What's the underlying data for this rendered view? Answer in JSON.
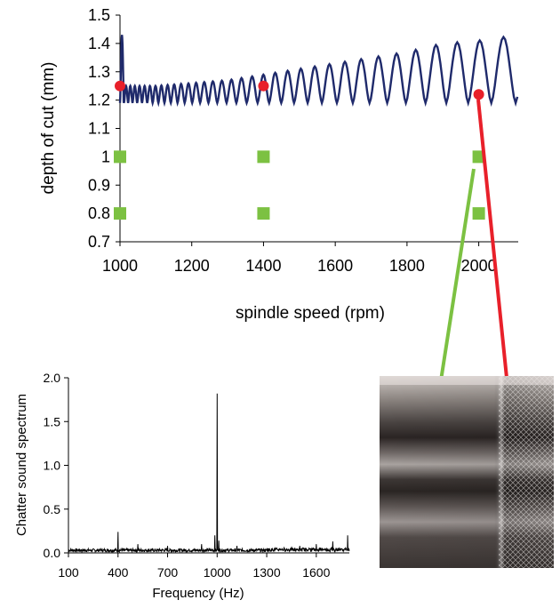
{
  "chart_data": [
    {
      "type": "line",
      "xlabel": "spindle speed (rpm)",
      "ylabel": "depth of cut (mm)",
      "xlim": [
        1000,
        2110
      ],
      "ylim": [
        0.7,
        1.5
      ],
      "x_ticks": [
        1000,
        1200,
        1400,
        1600,
        1800,
        2000
      ],
      "y_ticks": [
        0.7,
        0.8,
        0.9,
        1.0,
        1.1,
        1.2,
        1.3,
        1.4,
        1.5
      ],
      "x_tick_labels": [
        "1000",
        "1200",
        "1400",
        "1600",
        "1800",
        "2000"
      ],
      "y_tick_labels": [
        "0.7",
        "0.8",
        "0.9",
        "1",
        "1.1",
        "1.2",
        "1.3",
        "1.4",
        "1.5"
      ],
      "grid": false,
      "stability_lobes": {
        "color": "#1f2a6b",
        "min_depth": 1.19,
        "x_start": 1000,
        "x_end": 2110,
        "lobe_peaks": [
          [
            1010,
            1.25
          ],
          [
            1100,
            1.25
          ],
          [
            1200,
            1.26
          ],
          [
            1300,
            1.27
          ],
          [
            1400,
            1.29
          ],
          [
            1500,
            1.31
          ],
          [
            1600,
            1.33
          ],
          [
            1700,
            1.35
          ],
          [
            1800,
            1.37
          ],
          [
            1900,
            1.4
          ],
          [
            2000,
            1.41
          ],
          [
            2110,
            1.43
          ]
        ]
      },
      "points_red": {
        "color": "#e8202a",
        "x": [
          1000,
          1400,
          2000
        ],
        "y": [
          1.25,
          1.25,
          1.22
        ]
      },
      "points_green": {
        "color": "#7cc142",
        "x": [
          1000,
          1400,
          2000,
          1000,
          1400,
          2000
        ],
        "y": [
          1.0,
          1.0,
          1.0,
          0.8,
          0.8,
          0.8
        ]
      },
      "arrows": {
        "green": "#7cc142",
        "red": "#e8202a"
      }
    },
    {
      "type": "line",
      "xlabel": "Frequency (Hz)",
      "ylabel": "Chatter sound spectrum",
      "xlim": [
        100,
        1800
      ],
      "ylim": [
        0,
        2.0
      ],
      "x_ticks": [
        100,
        400,
        700,
        1000,
        1300,
        1600
      ],
      "y_ticks": [
        0,
        0.5,
        1.0,
        1.5,
        2.0
      ],
      "x_tick_labels": [
        "100",
        "400",
        "700",
        "1000",
        "1300",
        "1600"
      ],
      "y_tick_labels": [
        "0.0",
        "0.5",
        "1.0",
        "1.5",
        "2.0"
      ],
      "grid": false,
      "baseline": 0.03,
      "peaks": [
        [
          400,
          0.24
        ],
        [
          520,
          0.1
        ],
        [
          700,
          0.08
        ],
        [
          905,
          0.1
        ],
        [
          985,
          0.2
        ],
        [
          1000,
          1.82
        ],
        [
          1010,
          0.14
        ],
        [
          1120,
          0.08
        ],
        [
          1500,
          0.08
        ],
        [
          1600,
          0.1
        ],
        [
          1700,
          0.13
        ],
        [
          1790,
          0.2
        ]
      ]
    }
  ],
  "photo": {
    "description_icon": "machined-surface-photo"
  }
}
